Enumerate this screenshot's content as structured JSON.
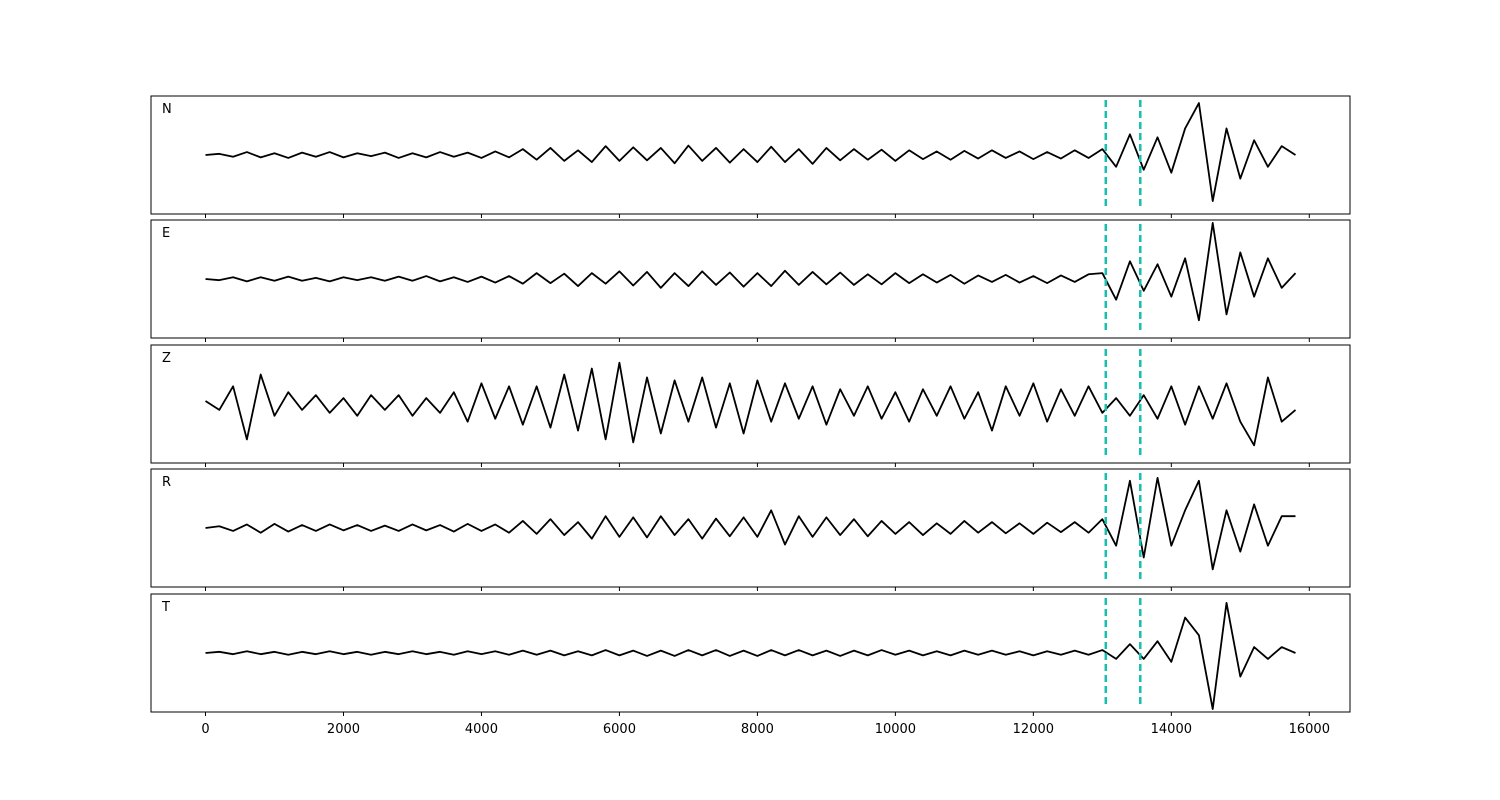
{
  "chart_data": {
    "type": "line",
    "xlim": [
      -790,
      16590
    ],
    "xticks": [
      0,
      2000,
      4000,
      6000,
      8000,
      10000,
      12000,
      14000,
      16000
    ],
    "ylim": [
      -1,
      1
    ],
    "line_color": "#000000",
    "vlines": [
      13050,
      13550
    ],
    "vline_color": "#17bfae",
    "x": [
      0,
      200,
      400,
      600,
      800,
      1000,
      1200,
      1400,
      1600,
      1800,
      2000,
      2200,
      2400,
      2600,
      2800,
      3000,
      3200,
      3400,
      3600,
      3800,
      4000,
      4200,
      4400,
      4600,
      4800,
      5000,
      5200,
      5400,
      5600,
      5800,
      6000,
      6200,
      6400,
      6600,
      6800,
      7000,
      7200,
      7400,
      7600,
      7800,
      8000,
      8200,
      8400,
      8600,
      8800,
      9000,
      9200,
      9400,
      9600,
      9800,
      10000,
      10200,
      10400,
      10600,
      10800,
      11000,
      11200,
      11400,
      11600,
      11800,
      12000,
      12200,
      12400,
      12600,
      12800,
      13000,
      13200,
      13400,
      13600,
      13800,
      14000,
      14200,
      14400,
      14600,
      14800,
      15000,
      15200,
      15400,
      15600,
      15800
    ],
    "series": [
      {
        "name": "N",
        "values": [
          0,
          0.02,
          -0.03,
          0.05,
          -0.04,
          0.03,
          -0.05,
          0.04,
          -0.03,
          0.05,
          -0.04,
          0.03,
          -0.02,
          0.04,
          -0.05,
          0.03,
          -0.04,
          0.05,
          -0.03,
          0.04,
          -0.05,
          0.06,
          -0.04,
          0.1,
          -0.08,
          0.12,
          -0.1,
          0.08,
          -0.12,
          0.15,
          -0.1,
          0.13,
          -0.09,
          0.12,
          -0.14,
          0.16,
          -0.1,
          0.12,
          -0.13,
          0.1,
          -0.12,
          0.14,
          -0.12,
          0.1,
          -0.15,
          0.12,
          -0.09,
          0.1,
          -0.08,
          0.09,
          -0.1,
          0.08,
          -0.07,
          0.06,
          -0.08,
          0.07,
          -0.06,
          0.08,
          -0.05,
          0.06,
          -0.07,
          0.05,
          -0.06,
          0.08,
          -0.05,
          0.1,
          -0.2,
          0.35,
          -0.25,
          0.3,
          -0.3,
          0.45,
          0.88,
          -0.78,
          0.45,
          -0.4,
          0.25,
          -0.2,
          0.15,
          0
        ]
      },
      {
        "name": "E",
        "values": [
          0,
          -0.02,
          0.03,
          -0.04,
          0.03,
          -0.03,
          0.04,
          -0.03,
          0.02,
          -0.04,
          0.03,
          -0.02,
          0.03,
          -0.03,
          0.04,
          -0.03,
          0.05,
          -0.04,
          0.03,
          -0.05,
          0.04,
          -0.06,
          0.05,
          -0.08,
          0.1,
          -0.07,
          0.09,
          -0.12,
          0.1,
          -0.08,
          0.13,
          -0.11,
          0.12,
          -0.15,
          0.1,
          -0.12,
          0.13,
          -0.1,
          0.11,
          -0.13,
          0.1,
          -0.12,
          0.14,
          -0.1,
          0.12,
          -0.09,
          0.11,
          -0.1,
          0.08,
          -0.09,
          0.1,
          -0.07,
          0.08,
          -0.06,
          0.07,
          -0.08,
          0.06,
          -0.05,
          0.07,
          -0.06,
          0.05,
          -0.07,
          0.06,
          -0.05,
          0.08,
          0.1,
          -0.35,
          0.3,
          -0.2,
          0.25,
          -0.3,
          0.35,
          -0.7,
          0.95,
          -0.6,
          0.45,
          -0.3,
          0.35,
          -0.15,
          0.1
        ]
      },
      {
        "name": "Z",
        "values": [
          0.05,
          -0.1,
          0.3,
          -0.6,
          0.5,
          -0.2,
          0.2,
          -0.1,
          0.15,
          -0.15,
          0.1,
          -0.2,
          0.15,
          -0.1,
          0.15,
          -0.2,
          0.1,
          -0.15,
          0.2,
          -0.3,
          0.35,
          -0.25,
          0.3,
          -0.35,
          0.3,
          -0.4,
          0.5,
          -0.45,
          0.6,
          -0.6,
          0.7,
          -0.65,
          0.45,
          -0.5,
          0.4,
          -0.3,
          0.45,
          -0.4,
          0.35,
          -0.5,
          0.4,
          -0.3,
          0.35,
          -0.25,
          0.3,
          -0.35,
          0.25,
          -0.2,
          0.3,
          -0.25,
          0.2,
          -0.3,
          0.25,
          -0.2,
          0.3,
          -0.25,
          0.2,
          -0.45,
          0.3,
          -0.2,
          0.35,
          -0.3,
          0.25,
          -0.2,
          0.3,
          -0.15,
          0.1,
          -0.2,
          0.15,
          -0.25,
          0.3,
          -0.35,
          0.3,
          -0.25,
          0.35,
          -0.3,
          -0.7,
          0.45,
          -0.3,
          -0.1
        ]
      },
      {
        "name": "R",
        "values": [
          0,
          0.03,
          -0.05,
          0.06,
          -0.08,
          0.07,
          -0.06,
          0.05,
          -0.05,
          0.06,
          -0.04,
          0.05,
          -0.05,
          0.04,
          -0.05,
          0.06,
          -0.04,
          0.05,
          -0.06,
          0.07,
          -0.05,
          0.06,
          -0.08,
          0.12,
          -0.1,
          0.15,
          -0.12,
          0.1,
          -0.18,
          0.2,
          -0.15,
          0.18,
          -0.16,
          0.2,
          -0.12,
          0.15,
          -0.18,
          0.16,
          -0.14,
          0.18,
          -0.15,
          0.3,
          -0.28,
          0.2,
          -0.15,
          0.18,
          -0.12,
          0.15,
          -0.14,
          0.12,
          -0.1,
          0.1,
          -0.12,
          0.08,
          -0.1,
          0.12,
          -0.08,
          0.1,
          -0.09,
          0.08,
          -0.1,
          0.09,
          -0.07,
          0.1,
          -0.08,
          0.15,
          -0.3,
          0.8,
          -0.5,
          0.85,
          -0.3,
          0.3,
          0.8,
          -0.7,
          0.3,
          -0.4,
          0.4,
          -0.3,
          0.2,
          0.2
        ]
      },
      {
        "name": "T",
        "values": [
          0,
          0.02,
          -0.02,
          0.03,
          -0.02,
          0.02,
          -0.03,
          0.02,
          -0.02,
          0.03,
          -0.02,
          0.02,
          -0.03,
          0.02,
          -0.02,
          0.03,
          -0.02,
          0.02,
          -0.03,
          0.03,
          -0.02,
          0.03,
          -0.03,
          0.04,
          -0.03,
          0.04,
          -0.04,
          0.03,
          -0.04,
          0.05,
          -0.04,
          0.04,
          -0.05,
          0.04,
          -0.05,
          0.05,
          -0.04,
          0.05,
          -0.05,
          0.04,
          -0.05,
          0.05,
          -0.04,
          0.05,
          -0.04,
          0.04,
          -0.05,
          0.04,
          -0.04,
          0.05,
          -0.03,
          0.04,
          -0.04,
          0.03,
          -0.04,
          0.04,
          -0.03,
          0.04,
          -0.03,
          0.03,
          -0.04,
          0.03,
          -0.03,
          0.04,
          -0.03,
          0.05,
          -0.1,
          0.15,
          -0.1,
          0.2,
          -0.15,
          0.6,
          0.3,
          -0.95,
          0.85,
          -0.4,
          0.1,
          -0.1,
          0.1,
          0
        ]
      }
    ]
  }
}
